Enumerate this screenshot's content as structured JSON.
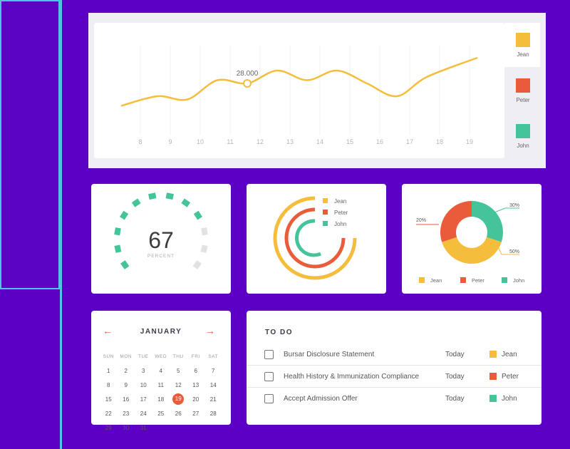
{
  "colors": {
    "jean": "#f4bd3b",
    "peter": "#ea5b3a",
    "john": "#45c39a",
    "gauge_off": "#e2e2e2"
  },
  "top_chart": {
    "annotation": "28.000",
    "x_labels": [
      "8",
      "9",
      "10",
      "11",
      "12",
      "13",
      "14",
      "15",
      "16",
      "17",
      "18",
      "19"
    ],
    "legend": [
      "Jean",
      "Peter",
      "John"
    ]
  },
  "chart_data": {
    "type": "line",
    "x": [
      8,
      9,
      10,
      11,
      12,
      13,
      14,
      15,
      16,
      17,
      18,
      19
    ],
    "series": [
      {
        "name": "Jean",
        "values": [
          17,
          20,
          19,
          25,
          24,
          28,
          25,
          28,
          24,
          20,
          26,
          32
        ]
      }
    ],
    "annotations": [
      {
        "x": 12,
        "y": 28,
        "label": "28.000"
      }
    ]
  },
  "gauge": {
    "value": "67",
    "label": "PERCENT",
    "filled_fraction": 0.67
  },
  "rings": {
    "legend": [
      "Jean",
      "Peter",
      "John"
    ]
  },
  "donut": {
    "legend": [
      "Jean",
      "Peter",
      "John"
    ],
    "labels": {
      "peter": "20%",
      "john": "30%",
      "jean": "50%"
    },
    "values": {
      "jean": 50,
      "peter": 20,
      "john": 30
    }
  },
  "calendar": {
    "month": "JANUARY",
    "prev": "←",
    "next": "→",
    "weekdays": [
      "SUN",
      "MON",
      "TUE",
      "WED",
      "THU",
      "FRI",
      "SAT"
    ],
    "weeks": [
      [
        "1",
        "2",
        "3",
        "4",
        "5",
        "6",
        "7"
      ],
      [
        "8",
        "9",
        "10",
        "11",
        "12",
        "13",
        "14"
      ],
      [
        "15",
        "16",
        "17",
        "18",
        "19",
        "20",
        "21"
      ],
      [
        "22",
        "23",
        "24",
        "25",
        "26",
        "27",
        "28"
      ],
      [
        "29",
        "30",
        "31",
        "",
        "",
        "",
        ""
      ]
    ],
    "today": "19"
  },
  "todo": {
    "title": "TO DO",
    "items": [
      {
        "task": "Bursar Disclosure Statement",
        "when": "Today",
        "who": "Jean",
        "color": "#f4bd3b"
      },
      {
        "task": "Health History & Immunization Compliance",
        "when": "Today",
        "who": "Peter",
        "color": "#ea5b3a"
      },
      {
        "task": "Accept Admission Offer",
        "when": "Today",
        "who": "John",
        "color": "#45c39a"
      }
    ]
  }
}
